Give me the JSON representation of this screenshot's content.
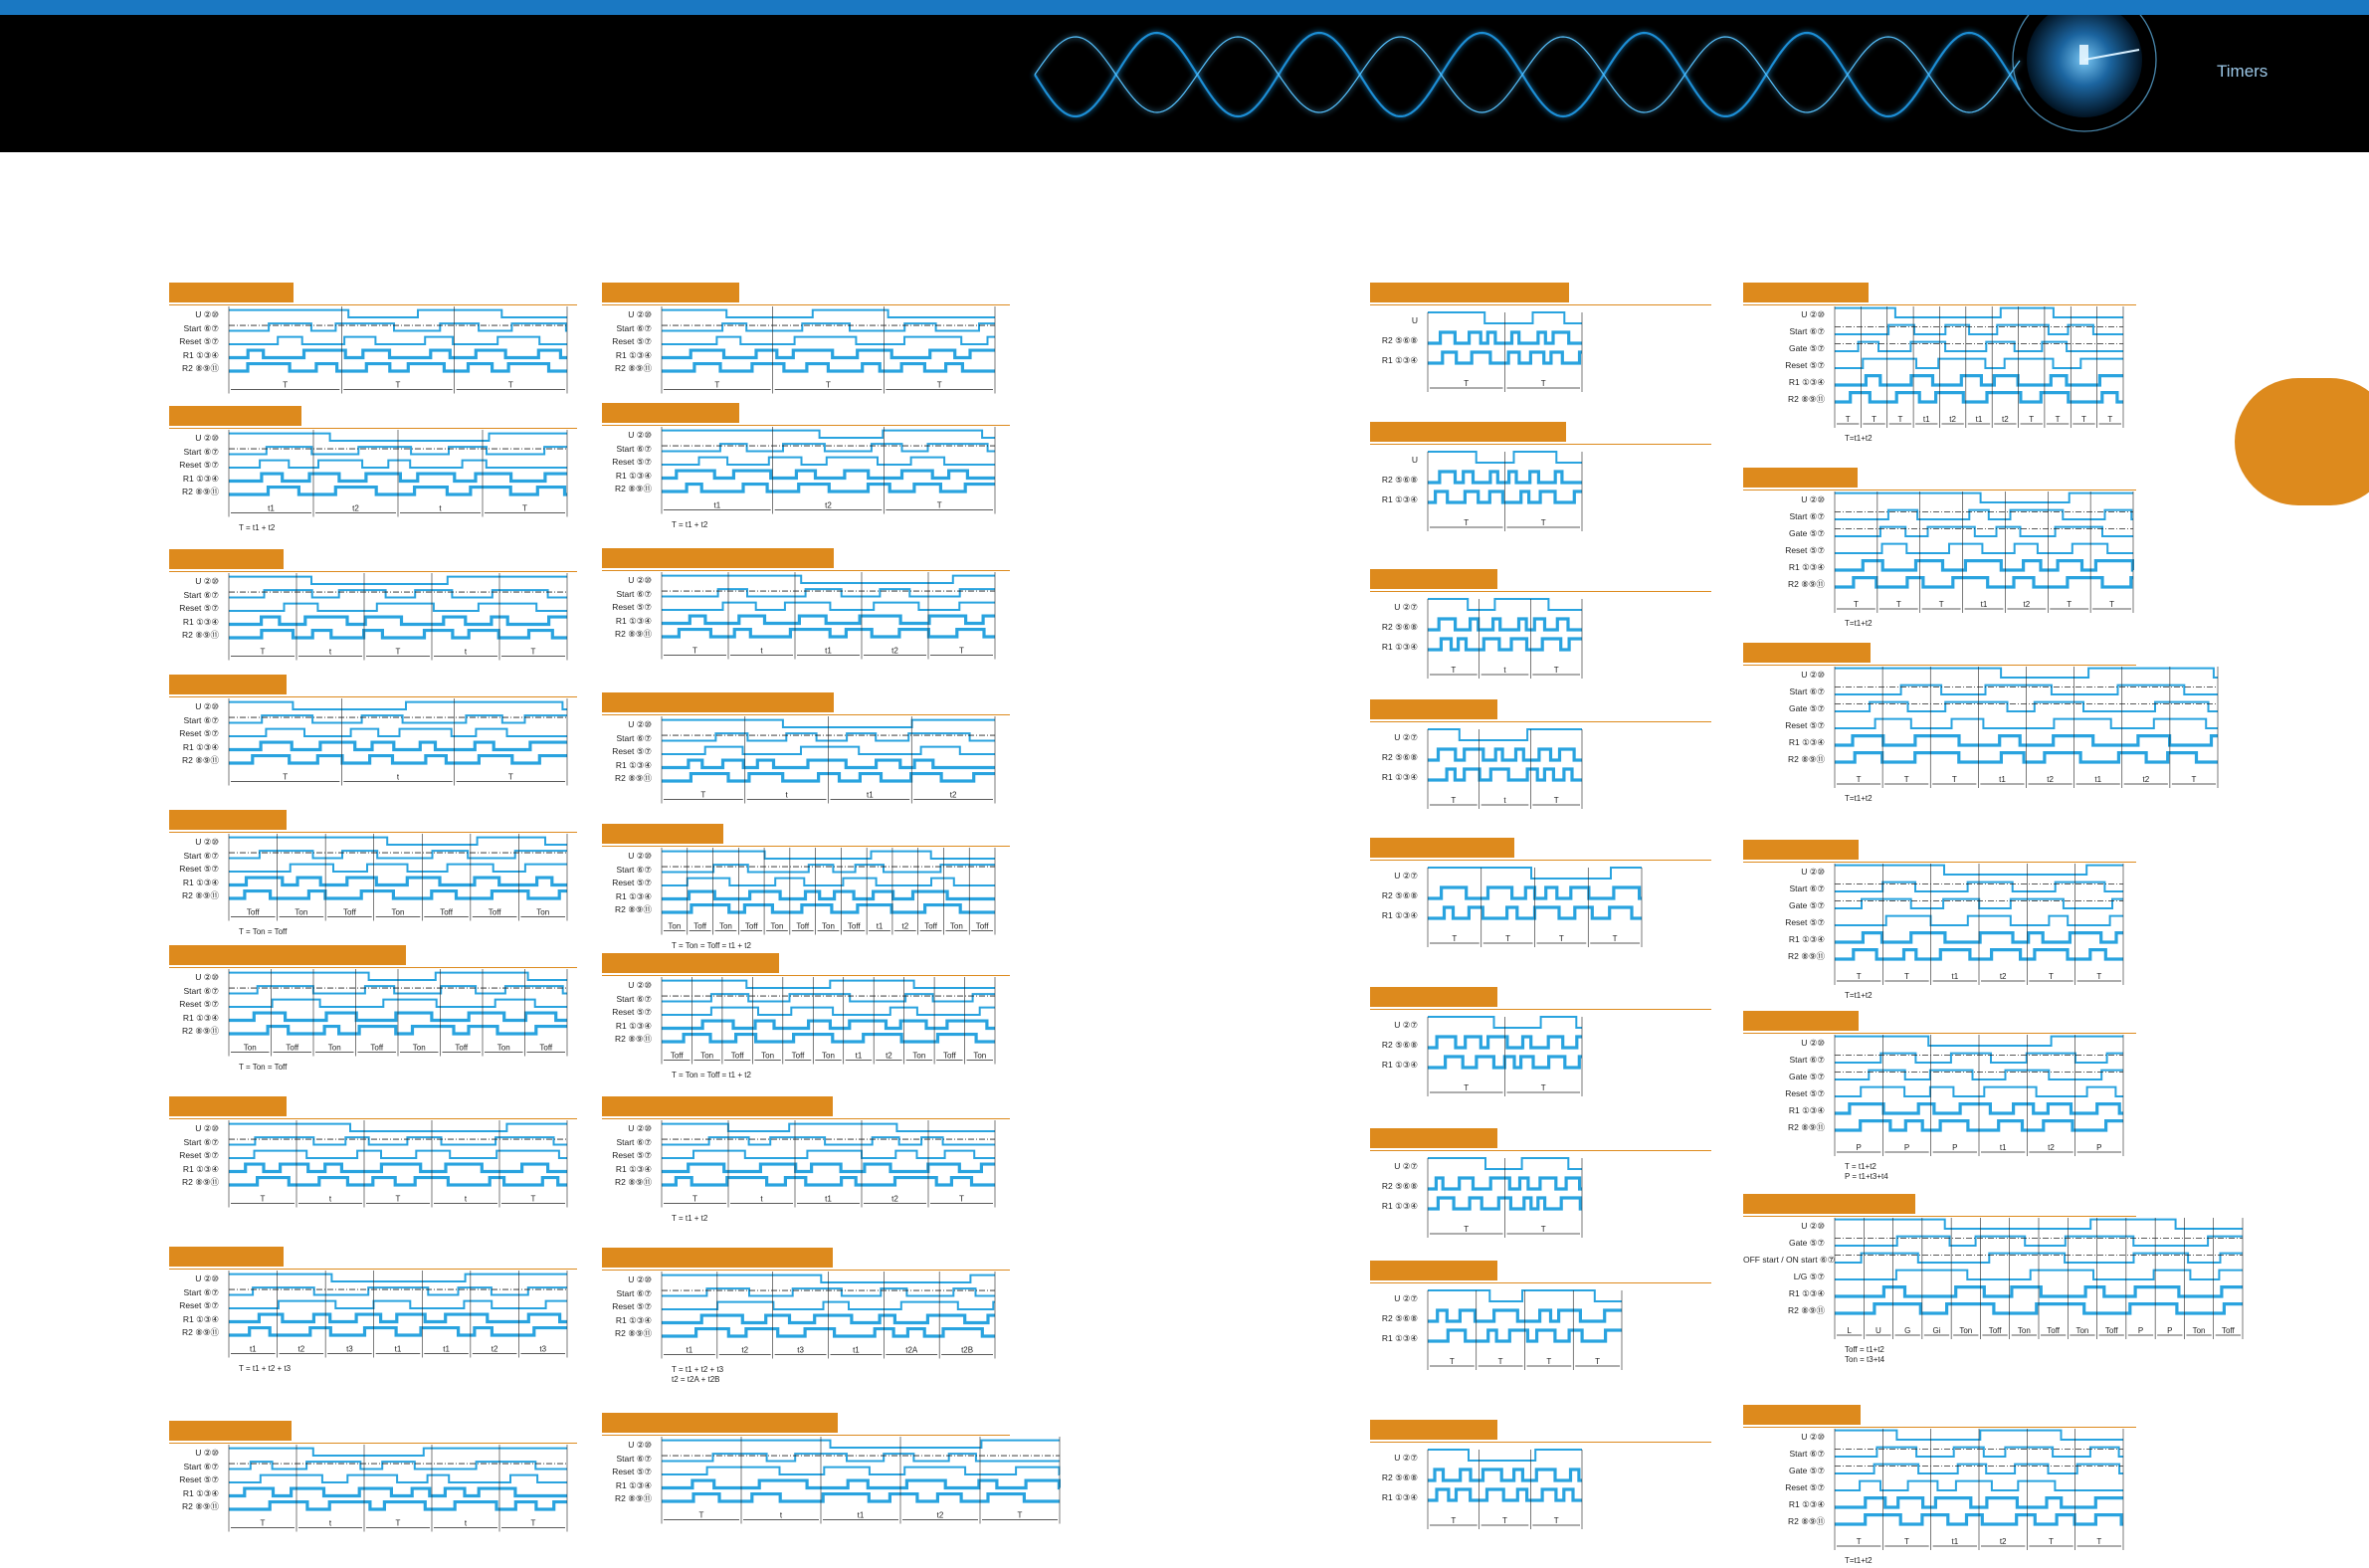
{
  "header": {
    "title": "Timers",
    "accent_color": "#1a78c2",
    "tab_color": "#dd8a1d",
    "wave_color": "#2a9fe0"
  },
  "panels": [
    {
      "id": "L1",
      "labels": [
        "U ②⑩",
        "Start ⑥⑦",
        "Reset ⑤⑦",
        "R1 ①③④",
        "R2 ⑧⑨⑪"
      ],
      "t_labels": [
        "T",
        "T",
        "T"
      ],
      "formula": ""
    },
    {
      "id": "L2",
      "labels": [
        "U ②⑩",
        "Start ⑥⑦",
        "Reset ⑤⑦",
        "R1 ①③④",
        "R2 ⑧⑨⑪"
      ],
      "t_labels": [
        "t1",
        "t2",
        "t",
        "T"
      ],
      "formula": "T = t1 + t2"
    },
    {
      "id": "L3",
      "labels": [
        "U ②⑩",
        "Start ⑥⑦",
        "Reset ⑤⑦",
        "R1 ①③④",
        "R2 ⑧⑨⑪"
      ],
      "t_labels": [
        "T",
        "t",
        "T",
        "t",
        "T"
      ],
      "formula": ""
    },
    {
      "id": "L4",
      "labels": [
        "U ②⑩",
        "Start ⑥⑦",
        "Reset ⑤⑦",
        "R1 ①③④",
        "R2 ⑧⑨⑪"
      ],
      "t_labels": [
        "T",
        "t",
        "T"
      ],
      "formula": ""
    },
    {
      "id": "L5",
      "labels": [
        "U ②⑩",
        "Start ⑥⑦",
        "Reset ⑤⑦",
        "R1 ①③④",
        "R2 ⑧⑨⑪"
      ],
      "t_labels": [
        "Toff",
        "Ton",
        "Toff",
        "Ton",
        "Toff",
        "Toff",
        "Ton"
      ],
      "formula": "T = Ton = Toff"
    },
    {
      "id": "L6",
      "labels": [
        "U ②⑩",
        "Start ⑥⑦",
        "Reset ⑤⑦",
        "R1 ①③④",
        "R2 ⑧⑨⑪"
      ],
      "t_labels": [
        "Ton",
        "Toff",
        "Ton",
        "Toff",
        "Ton",
        "Toff",
        "Ton",
        "Toff"
      ],
      "formula": "T = Ton = Toff"
    },
    {
      "id": "L7",
      "labels": [
        "U ②⑩",
        "Start ⑥⑦",
        "Reset ⑤⑦",
        "R1 ①③④",
        "R2 ⑧⑨⑪"
      ],
      "t_labels": [
        "T",
        "t",
        "T",
        "t",
        "T"
      ],
      "formula": ""
    },
    {
      "id": "L8",
      "labels": [
        "U ②⑩",
        "Start ⑥⑦",
        "Reset ⑤⑦",
        "R1 ①③④",
        "R2 ⑧⑨⑪"
      ],
      "t_labels": [
        "t1",
        "t2",
        "t3",
        "t1",
        "t1",
        "t2",
        "t3"
      ],
      "formula": "T = t1 + t2 + t3"
    },
    {
      "id": "L9",
      "labels": [
        "U ②⑩",
        "Start ⑥⑦",
        "Reset ⑤⑦",
        "R1 ①③④",
        "R2 ⑧⑨⑪"
      ],
      "t_labels": [
        "T",
        "t",
        "T",
        "t",
        "T"
      ],
      "formula": ""
    },
    {
      "id": "M1",
      "labels": [
        "U ②⑩",
        "Start ⑥⑦",
        "Reset ⑤⑦",
        "R1 ①③④",
        "R2 ⑧⑨⑪"
      ],
      "t_labels": [
        "T",
        "T",
        "T"
      ],
      "formula": ""
    },
    {
      "id": "M2",
      "labels": [
        "U ②⑩",
        "Start ⑥⑦",
        "Reset ⑤⑦",
        "R1 ①③④",
        "R2 ⑧⑨⑪"
      ],
      "t_labels": [
        "t1",
        "t2",
        "T"
      ],
      "formula": "T = t1 + t2"
    },
    {
      "id": "M3",
      "labels": [
        "U ②⑩",
        "Start ⑥⑦",
        "Reset ⑤⑦",
        "R1 ①③④",
        "R2 ⑧⑨⑪"
      ],
      "t_labels": [
        "T",
        "t",
        "t1",
        "t2",
        "T"
      ],
      "formula": ""
    },
    {
      "id": "M4",
      "labels": [
        "U ②⑩",
        "Start ⑥⑦",
        "Reset ⑤⑦",
        "R1 ①③④",
        "R2 ⑧⑨⑪"
      ],
      "t_labels": [
        "T",
        "t",
        "t1",
        "t2"
      ],
      "formula": ""
    },
    {
      "id": "M5",
      "labels": [
        "U ②⑩",
        "Start ⑥⑦",
        "Reset ⑤⑦",
        "R1 ①③④",
        "R2 ⑧⑨⑪"
      ],
      "t_labels": [
        "Ton",
        "Toff",
        "Ton",
        "Toff",
        "Ton",
        "Toff",
        "Ton",
        "Toff",
        "t1",
        "t2",
        "Toff",
        "Ton",
        "Toff"
      ],
      "formula": "T = Ton = Toff = t1 + t2"
    },
    {
      "id": "M6",
      "labels": [
        "U ②⑩",
        "Start ⑥⑦",
        "Reset ⑤⑦",
        "R1 ①③④",
        "R2 ⑧⑨⑪"
      ],
      "t_labels": [
        "Toff",
        "Ton",
        "Toff",
        "Ton",
        "Toff",
        "Ton",
        "t1",
        "t2",
        "Ton",
        "Toff",
        "Ton"
      ],
      "formula": "T = Ton = Toff = t1 + t2"
    },
    {
      "id": "M7",
      "labels": [
        "U ②⑩",
        "Start ⑥⑦",
        "Reset ⑤⑦",
        "R1 ①③④",
        "R2 ⑧⑨⑪"
      ],
      "t_labels": [
        "T",
        "t",
        "t1",
        "t2",
        "T"
      ],
      "formula": "T = t1 + t2"
    },
    {
      "id": "M8",
      "labels": [
        "U ②⑩",
        "Start ⑥⑦",
        "Reset ⑤⑦",
        "R1 ①③④",
        "R2 ⑧⑨⑪"
      ],
      "t_labels": [
        "t1",
        "t2",
        "t3",
        "t1",
        "t2A",
        "t2B"
      ],
      "formula": "T = t1 + t2 + t3",
      "formula2": "t2 = t2A + t2B"
    },
    {
      "id": "M9",
      "labels": [
        "U ②⑩",
        "Start ⑥⑦",
        "Reset ⑤⑦",
        "R1 ①③④",
        "R2 ⑧⑨⑪"
      ],
      "t_labels": [
        "T",
        "t",
        "t1",
        "t2",
        "T"
      ],
      "formula": ""
    },
    {
      "id": "R1",
      "labels": [
        "U",
        "R2 ⑤⑥⑧",
        "R1 ①③④"
      ],
      "t_labels": [
        "T",
        "T"
      ],
      "formula": ""
    },
    {
      "id": "R2",
      "labels": [
        "U",
        "R2 ⑤⑥⑧",
        "R1 ①③④"
      ],
      "t_labels": [
        "T",
        "T"
      ],
      "formula": ""
    },
    {
      "id": "R3",
      "labels": [
        "U ②⑦",
        "R2 ⑤⑥⑧",
        "R1 ①③④"
      ],
      "t_labels": [
        "T",
        "t",
        "T"
      ],
      "formula": ""
    },
    {
      "id": "R4",
      "labels": [
        "U ②⑦",
        "R2 ⑤⑥⑧",
        "R1 ①③④"
      ],
      "t_labels": [
        "T",
        "t",
        "T"
      ],
      "formula": ""
    },
    {
      "id": "R5",
      "labels": [
        "U ②⑦",
        "R2 ⑤⑥⑧",
        "R1 ①③④"
      ],
      "t_labels": [
        "T",
        "T",
        "T",
        "T"
      ],
      "formula": ""
    },
    {
      "id": "R6",
      "labels": [
        "U ②⑦",
        "R2 ⑤⑥⑧",
        "R1 ①③④"
      ],
      "t_labels": [
        "T",
        "T"
      ],
      "formula": ""
    },
    {
      "id": "R7",
      "labels": [
        "U ②⑦",
        "R2 ⑤⑥⑧",
        "R1 ①③④"
      ],
      "t_labels": [
        "T",
        "T"
      ],
      "formula": ""
    },
    {
      "id": "R8",
      "labels": [
        "U ②⑦",
        "R2 ⑤⑥⑧",
        "R1 ①③④"
      ],
      "t_labels": [
        "T",
        "T",
        "T",
        "T"
      ],
      "formula": ""
    },
    {
      "id": "R9",
      "labels": [
        "U ②⑦",
        "R2 ⑤⑥⑧",
        "R1 ①③④"
      ],
      "t_labels": [
        "T",
        "T",
        "T"
      ],
      "formula": ""
    },
    {
      "id": "F1",
      "labels": [
        "U ②⑩",
        "Start ⑥⑦",
        "Gate ⑤⑦",
        "Reset ⑤⑦",
        "R1 ①③④",
        "R2 ⑧⑨⑪"
      ],
      "t_labels": [
        "T",
        "T",
        "T",
        "t1",
        "t2",
        "t1",
        "t2",
        "T",
        "T",
        "T",
        "T"
      ],
      "formula": "T=t1+t2"
    },
    {
      "id": "F2",
      "labels": [
        "U ②⑩",
        "Start ⑥⑦",
        "Gate ⑤⑦",
        "Reset ⑤⑦",
        "R1 ①③④",
        "R2 ⑧⑨⑪"
      ],
      "t_labels": [
        "T",
        "T",
        "T",
        "t1",
        "t2",
        "T",
        "T"
      ],
      "formula": "T=t1+t2"
    },
    {
      "id": "F3",
      "labels": [
        "U ②⑩",
        "Start ⑥⑦",
        "Gate ⑤⑦",
        "Reset ⑤⑦",
        "R1 ①③④",
        "R2 ⑧⑨⑪"
      ],
      "t_labels": [
        "T",
        "T",
        "T",
        "t1",
        "t2",
        "t1",
        "t2",
        "T"
      ],
      "formula": "T=t1+t2"
    },
    {
      "id": "F4",
      "labels": [
        "U ②⑩",
        "Start ⑥⑦",
        "Gate ⑤⑦",
        "Reset ⑤⑦",
        "R1 ①③④",
        "R2 ⑧⑨⑪"
      ],
      "t_labels": [
        "T",
        "T",
        "t1",
        "t2",
        "T",
        "T"
      ],
      "formula": "T=t1+t2"
    },
    {
      "id": "F5",
      "labels": [
        "U ②⑩",
        "Start ⑥⑦",
        "Gate ⑤⑦",
        "Reset ⑤⑦",
        "R1 ①③④",
        "R2 ⑧⑨⑪"
      ],
      "t_labels": [
        "P",
        "P",
        "P",
        "t1",
        "t2",
        "P"
      ],
      "formula": "T = t1+t2",
      "formula2": "P = t1+t3+t4"
    },
    {
      "id": "F6",
      "labels": [
        "U ②⑩",
        "Gate ⑤⑦",
        "OFF start / ON start ⑥⑦",
        "L/G ⑤⑦",
        "R1 ①③④",
        "R2 ⑧⑨⑪"
      ],
      "t_labels": [
        "L",
        "U",
        "G",
        "Gi",
        "Ton",
        "Toff",
        "Ton",
        "Toff",
        "Ton",
        "Toff",
        "P",
        "P",
        "Ton",
        "Toff"
      ],
      "formula": "Toff = t1+t2",
      "formula2": "Ton = t3+t4"
    },
    {
      "id": "F7",
      "labels": [
        "U ②⑩",
        "Start ⑥⑦",
        "Gate ⑤⑦",
        "Reset ⑤⑦",
        "R1 ①③④",
        "R2 ⑧⑨⑪"
      ],
      "t_labels": [
        "T",
        "T",
        "t1",
        "t2",
        "T",
        "T"
      ],
      "formula": "T=t1+t2"
    }
  ]
}
